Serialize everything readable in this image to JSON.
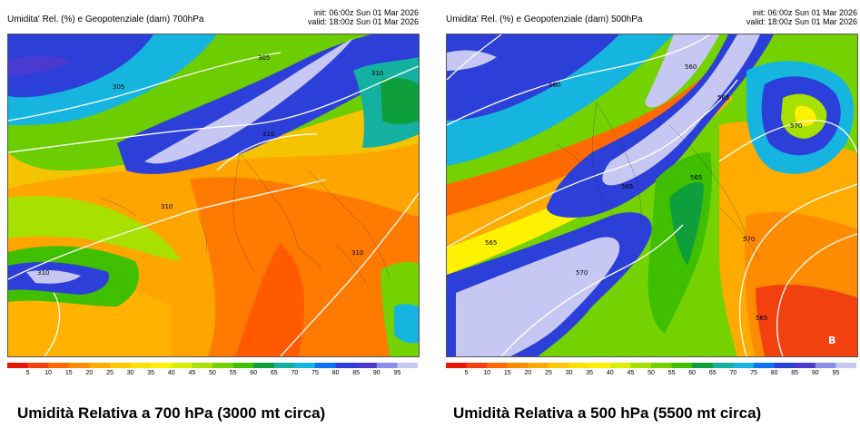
{
  "left": {
    "title": "Umidita' Rel. (%) e Geopotenziale (dam) 700hPa",
    "init": "init: 06:00z Sun 01 Mar 2026",
    "valid": "valid: 18:00z Sun 01 Mar 2026",
    "contours": [
      "305",
      "305",
      "310",
      "310",
      "310",
      "310",
      "310"
    ],
    "caption": "Umidità Relativa a 700 hPa (3000 mt circa)"
  },
  "right": {
    "title": "Umidita' Rel. (%) e Geopotenziale (dam) 500hPa",
    "init": "init: 06:00z Sun 01 Mar 2026",
    "valid": "valid: 18:00z Sun 01 Mar 2026",
    "contours": [
      "560",
      "560",
      "565",
      "565",
      "570",
      "565",
      "570",
      "565",
      "570",
      "565"
    ],
    "pressure_label": "B",
    "caption": "Umidità Relativa a 500 hPa (5500 mt circa)"
  },
  "colorbar": {
    "ticks": [
      "5",
      "10",
      "15",
      "20",
      "25",
      "30",
      "35",
      "40",
      "45",
      "50",
      "55",
      "60",
      "65",
      "70",
      "75",
      "80",
      "85",
      "90",
      "95"
    ],
    "colors": [
      "#e3170a",
      "#f2410f",
      "#ff6a00",
      "#ff8c00",
      "#ffab00",
      "#ffc800",
      "#ffe100",
      "#fff200",
      "#d8f000",
      "#a8e000",
      "#74d200",
      "#3fbf00",
      "#0f9e3c",
      "#14b1a0",
      "#16b5e0",
      "#0f72ef",
      "#2c3fd8",
      "#4a3ad0",
      "#8a8ee8",
      "#c7c7f4"
    ]
  }
}
